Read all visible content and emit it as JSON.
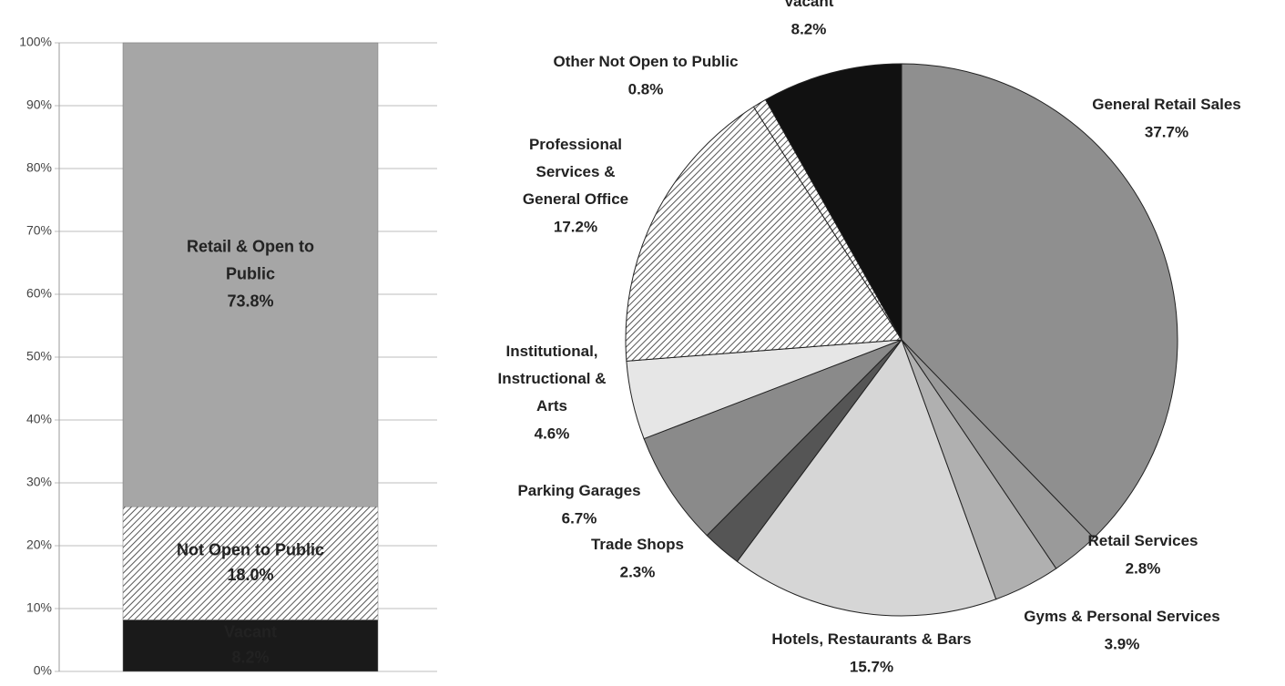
{
  "chart_data": [
    {
      "type": "stacked_bar",
      "categories": [
        null
      ],
      "series": [
        {
          "name": "Vacant",
          "color": "#1a1a1a",
          "values": [
            8.2
          ],
          "value_labels": [
            "8.2%"
          ],
          "label_color": "#ffffff"
        },
        {
          "name": "Not Open to Public",
          "color": "#f2f2f2",
          "pattern": "hatch",
          "values": [
            18.0
          ],
          "value_labels": [
            "18.0%"
          ],
          "label_color": "#333333"
        },
        {
          "name": "Retail & Open to Public",
          "color": "#a6a6a6",
          "values": [
            73.8
          ],
          "value_labels": [
            "73.8%"
          ],
          "label_color": "#1a1a1a"
        }
      ],
      "ylim": [
        0,
        100
      ],
      "yticks": [
        {
          "value": 0,
          "label": "0%"
        },
        {
          "value": 10,
          "label": "10%"
        },
        {
          "value": 20,
          "label": "20%"
        },
        {
          "value": 30,
          "label": "30%"
        },
        {
          "value": 40,
          "label": "40%"
        },
        {
          "value": 50,
          "label": "50%"
        },
        {
          "value": 60,
          "label": "60%"
        },
        {
          "value": 70,
          "label": "70%"
        },
        {
          "value": 80,
          "label": "80%"
        },
        {
          "value": 90,
          "label": "90%"
        },
        {
          "value": 100,
          "label": "100%"
        }
      ],
      "grid": true
    },
    {
      "type": "pie",
      "categories": [
        "General Retail Sales",
        "Retail Services",
        "Gyms & Personal Services",
        "Hotels, Restaurants & Bars",
        "Trade Shops",
        "Parking Garages",
        "Institutional, Instructional & Arts",
        "Professional Services & General Office",
        "Other Not Open to Public",
        "Vacant"
      ],
      "values": [
        37.7,
        2.8,
        3.9,
        15.7,
        2.3,
        6.7,
        4.6,
        17.2,
        0.8,
        8.2
      ],
      "value_labels": [
        "37.7%",
        "2.8%",
        "3.9%",
        "15.7%",
        "2.3%",
        "6.7%",
        "4.6%",
        "17.2%",
        "0.8%",
        "8.2%"
      ],
      "colors": [
        "#8f8f8f",
        "#9a9a9a",
        "#b0b0b0",
        "#d6d6d6",
        "#555555",
        "#8a8a8a",
        "#e6e6e6",
        "#ffffff",
        "#ffffff",
        "#111111"
      ],
      "patterns": [
        null,
        null,
        null,
        null,
        null,
        null,
        null,
        "hatch",
        "hatch",
        null
      ]
    }
  ]
}
